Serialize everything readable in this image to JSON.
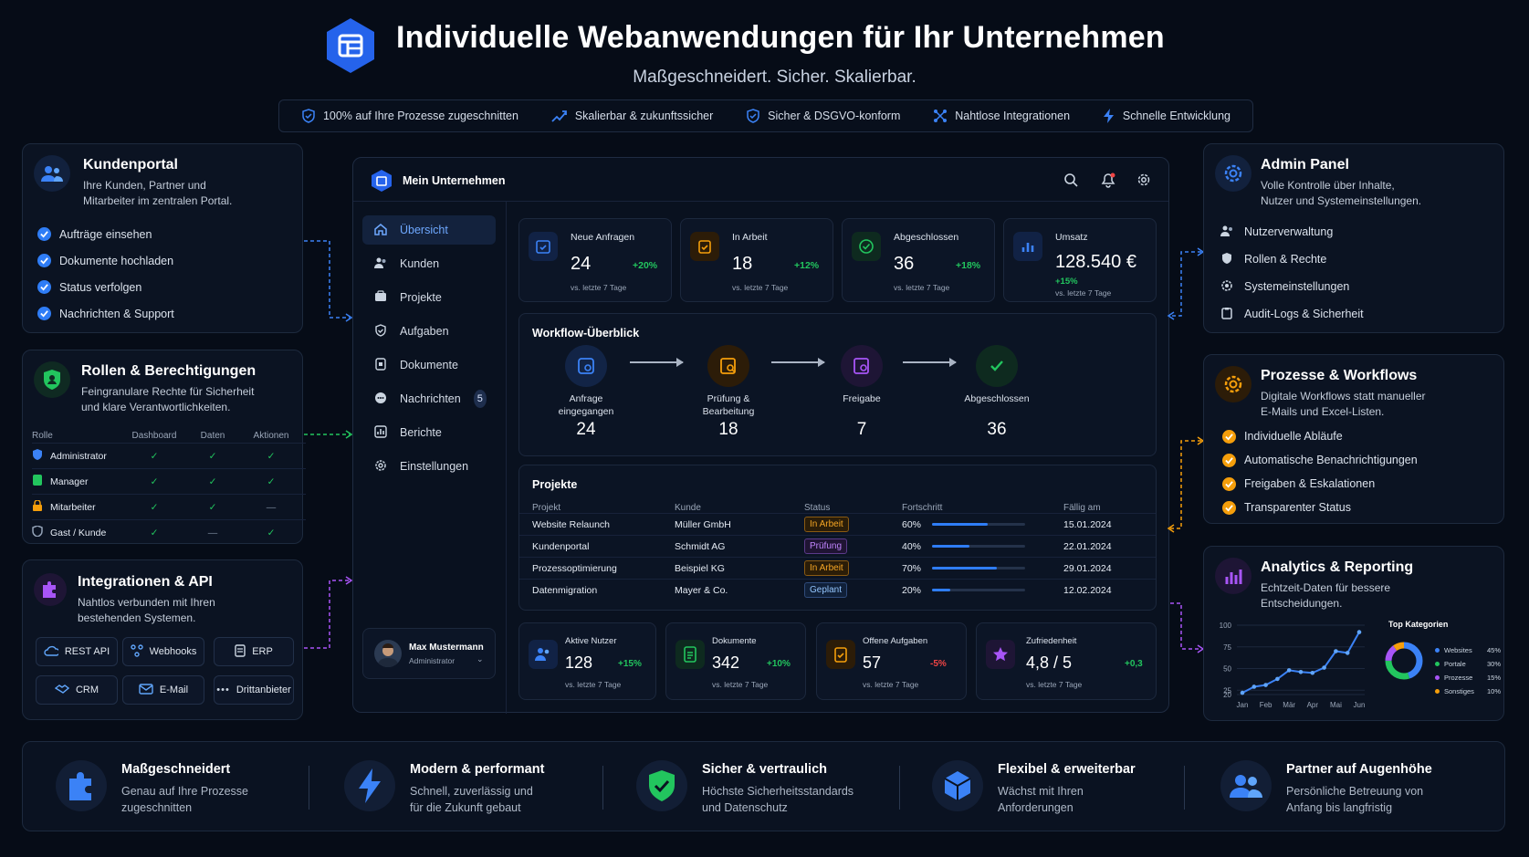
{
  "header": {
    "title": "Individuelle Webanwendungen für Ihr Unternehmen",
    "subtitle": "Maßgeschneidert. Sicher. Skalierbar.",
    "features": [
      "100% auf Ihre Prozesse zugeschnitten",
      "Skalierbar & zukunftssicher",
      "Sicher & DSGVO-konform",
      "Nahtlose Integrationen",
      "Schnelle Entwicklung"
    ]
  },
  "kundenportal": {
    "title": "Kundenportal",
    "desc1": "Ihre Kunden, Partner und",
    "desc2": "Mitarbeiter im zentralen Portal.",
    "items": [
      "Aufträge einsehen",
      "Dokumente hochladen",
      "Status verfolgen",
      "Nachrichten & Support"
    ]
  },
  "rollen": {
    "title": "Rollen & Berechtigungen",
    "desc1": "Feingranulare Rechte für Sicherheit",
    "desc2": "und klare Verantwortlichkeiten.",
    "cols": [
      "Rolle",
      "Dashboard",
      "Daten",
      "Aktionen"
    ],
    "rows": [
      {
        "role": "Administrator",
        "v": [
          "✓",
          "✓",
          "✓"
        ]
      },
      {
        "role": "Manager",
        "v": [
          "✓",
          "✓",
          "✓"
        ]
      },
      {
        "role": "Mitarbeiter",
        "v": [
          "✓",
          "✓",
          "—"
        ]
      },
      {
        "role": "Gast / Kunde",
        "v": [
          "✓",
          "—",
          "✓"
        ]
      }
    ]
  },
  "integrationen": {
    "title": "Integrationen & API",
    "desc1": "Nahtlos verbunden mit Ihren",
    "desc2": "bestehenden Systemen.",
    "buttons": [
      "REST API",
      "Webhooks",
      "ERP",
      "CRM",
      "E-Mail",
      "Drittanbieter"
    ]
  },
  "app": {
    "company": "Mein Unternehmen",
    "nav": [
      "Übersicht",
      "Kunden",
      "Projekte",
      "Aufgaben",
      "Dokumente",
      "Nachrichten",
      "Berichte",
      "Einstellungen"
    ],
    "nav_badge": "5",
    "user": {
      "name": "Max Mustermann",
      "role": "Administrator"
    },
    "kpis": [
      {
        "label": "Neue Anfragen",
        "value": "24",
        "change": "+20%",
        "sub": "vs. letzte 7 Tage"
      },
      {
        "label": "In Arbeit",
        "value": "18",
        "change": "+12%",
        "sub": "vs. letzte 7 Tage"
      },
      {
        "label": "Abgeschlossen",
        "value": "36",
        "change": "+18%",
        "sub": "vs. letzte 7 Tage"
      },
      {
        "label": "Umsatz",
        "value": "128.540 €",
        "change": "+15%",
        "sub": "vs. letzte 7 Tage"
      }
    ],
    "workflow": {
      "title": "Workflow-Überblick",
      "steps": [
        {
          "l1": "Anfrage",
          "l2": "eingegangen",
          "value": "24"
        },
        {
          "l1": "Prüfung &",
          "l2": "Bearbeitung",
          "value": "18"
        },
        {
          "l1": "Freigabe",
          "l2": "",
          "value": "7"
        },
        {
          "l1": "Abgeschlossen",
          "l2": "",
          "value": "36"
        }
      ]
    },
    "projects": {
      "title": "Projekte",
      "cols": [
        "Projekt",
        "Kunde",
        "Status",
        "Fortschritt",
        "Fällig am"
      ],
      "rows": [
        {
          "name": "Website Relaunch",
          "client": "Müller GmbH",
          "status": "In Arbeit",
          "progress": "60%",
          "due": "15.01.2024"
        },
        {
          "name": "Kundenportal",
          "client": "Schmidt AG",
          "status": "Prüfung",
          "progress": "40%",
          "due": "22.01.2024"
        },
        {
          "name": "Prozessoptimierung",
          "client": "Beispiel KG",
          "status": "In Arbeit",
          "progress": "70%",
          "due": "29.01.2024"
        },
        {
          "name": "Datenmigration",
          "client": "Mayer & Co.",
          "status": "Geplant",
          "progress": "20%",
          "due": "12.02.2024"
        }
      ]
    },
    "bottom_kpis": [
      {
        "label": "Aktive Nutzer",
        "value": "128",
        "change": "+15%",
        "sub": "vs. letzte 7 Tage"
      },
      {
        "label": "Dokumente",
        "value": "342",
        "change": "+10%",
        "sub": "vs. letzte 7 Tage"
      },
      {
        "label": "Offene Aufgaben",
        "value": "57",
        "change": "-5%",
        "sub": "vs. letzte 7 Tage"
      },
      {
        "label": "Zufriedenheit",
        "value": "4,8 / 5",
        "change": "+0,3",
        "sub": "vs. letzte 7 Tage"
      }
    ]
  },
  "admin": {
    "title": "Admin Panel",
    "desc1": "Volle Kontrolle über Inhalte,",
    "desc2": "Nutzer und Systemeinstellungen.",
    "items": [
      "Nutzerverwaltung",
      "Rollen & Rechte",
      "Systemeinstellungen",
      "Audit-Logs & Sicherheit"
    ]
  },
  "prozesse": {
    "title": "Prozesse & Workflows",
    "desc1": "Digitale Workflows statt manueller",
    "desc2": "E-Mails und Excel-Listen.",
    "items": [
      "Individuelle Abläufe",
      "Automatische Benachrichtigungen",
      "Freigaben & Eskalationen",
      "Transparenter Status"
    ]
  },
  "analytics": {
    "title": "Analytics & Reporting",
    "desc1": "Echtzeit-Daten für bessere",
    "desc2": "Entscheidungen.",
    "top_title": "Top Kategorien",
    "legend": [
      {
        "name": "Websites",
        "pct": "45%",
        "color": "#3b82f6"
      },
      {
        "name": "Portale",
        "pct": "30%",
        "color": "#22c55e"
      },
      {
        "name": "Prozesse",
        "pct": "15%",
        "color": "#a855f7"
      },
      {
        "name": "Sonstiges",
        "pct": "10%",
        "color": "#f59e0b"
      }
    ]
  },
  "chart_data": {
    "type": "line",
    "x": [
      "Jan",
      "",
      "Feb",
      "",
      "Mär",
      "",
      "Apr",
      "",
      "Mai",
      "",
      "Jun"
    ],
    "yticks": [
      "100",
      "75",
      "50",
      "25",
      "20"
    ],
    "values": [
      22,
      29,
      31,
      38,
      48,
      46,
      45,
      51,
      70,
      68,
      92
    ],
    "ylim": [
      20,
      100
    ],
    "donut": {
      "values": [
        45,
        30,
        15,
        10
      ],
      "colors": [
        "#3b82f6",
        "#22c55e",
        "#a855f7",
        "#f59e0b"
      ]
    }
  },
  "footer": [
    {
      "title": "Maßgeschneidert",
      "d1": "Genau auf Ihre Prozesse",
      "d2": "zugeschnitten"
    },
    {
      "title": "Modern & performant",
      "d1": "Schnell, zuverlässig und",
      "d2": "für die Zukunft gebaut"
    },
    {
      "title": "Sicher & vertraulich",
      "d1": "Höchste Sicherheitsstandards",
      "d2": "und Datenschutz"
    },
    {
      "title": "Flexibel & erweiterbar",
      "d1": "Wächst mit Ihren",
      "d2": "Anforderungen"
    },
    {
      "title": "Partner auf Augenhöhe",
      "d1": "Persönliche Betreuung von",
      "d2": "Anfang bis langfristig"
    }
  ]
}
